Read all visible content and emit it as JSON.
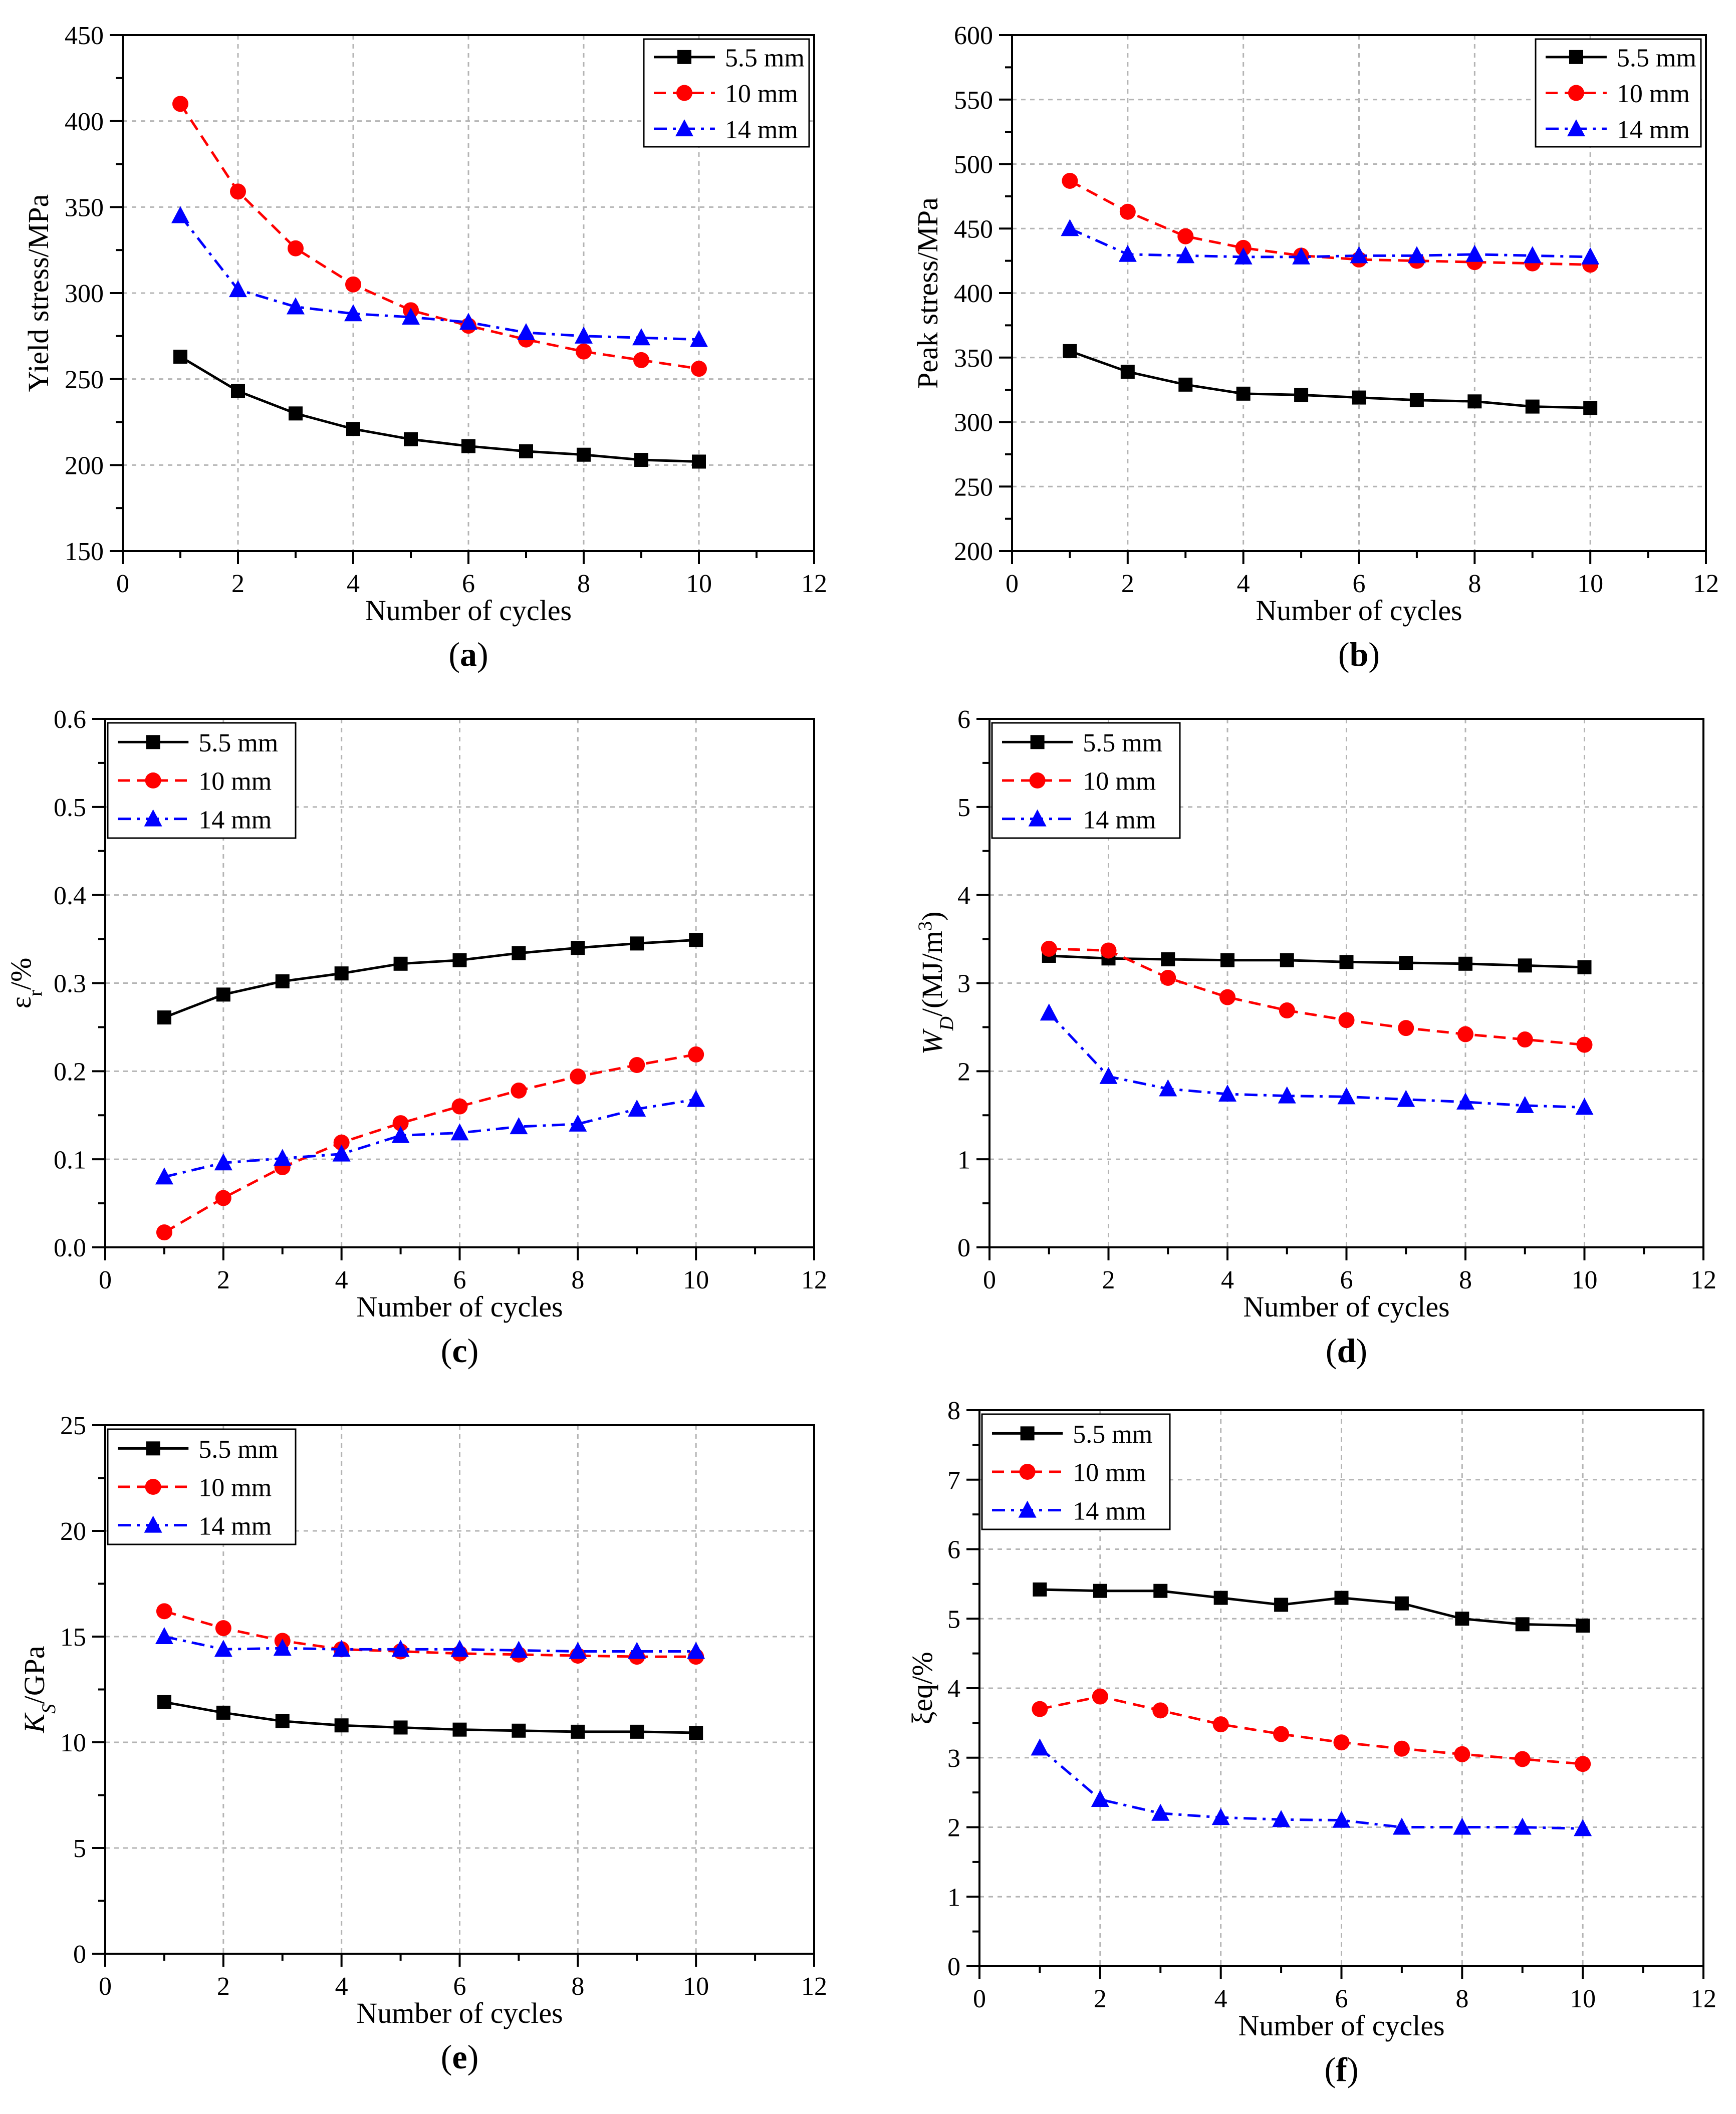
{
  "figure": {
    "series_styles": [
      {
        "color": "#000000",
        "dash": "none",
        "marker": "square"
      },
      {
        "color": "#ff0000",
        "dash": "dashed",
        "marker": "circle"
      },
      {
        "color": "#0000ff",
        "dash": "dashdot",
        "marker": "triangle"
      }
    ]
  },
  "chart_data": [
    {
      "id": "a",
      "type": "line",
      "panel_label": "(a)",
      "panel_letter": "a",
      "xlabel": "Number of cycles",
      "ylabel": "Yield stress/MPa",
      "ylabel_main": "Yield stress/MPa",
      "ylabel_sub": "",
      "ylabel_tail": "",
      "xlim": [
        0,
        12
      ],
      "ylim": [
        150,
        450
      ],
      "xticks": [
        "0",
        "2",
        "4",
        "6",
        "8",
        "10",
        "12"
      ],
      "yticks": [
        "150",
        "200",
        "250",
        "300",
        "350",
        "400",
        "450"
      ],
      "grid": true,
      "legend_position": "top-right",
      "x": [
        1,
        2,
        3,
        4,
        5,
        6,
        7,
        8,
        9,
        10
      ],
      "series": [
        {
          "name": "5.5 mm",
          "values": [
            263,
            243,
            230,
            221,
            215,
            211,
            208,
            206,
            203,
            202
          ]
        },
        {
          "name": "10 mm",
          "values": [
            410,
            359,
            326,
            305,
            290,
            281,
            273,
            266,
            261,
            256
          ]
        },
        {
          "name": "14 mm",
          "values": [
            345,
            302,
            292,
            288,
            286,
            283,
            277,
            275,
            274,
            273
          ]
        }
      ]
    },
    {
      "id": "b",
      "type": "line",
      "panel_label": "(b)",
      "panel_letter": "b",
      "xlabel": "Number of cycles",
      "ylabel": "Peak stress/MPa",
      "ylabel_main": "Peak stress/MPa",
      "ylabel_sub": "",
      "ylabel_tail": "",
      "xlim": [
        0,
        12
      ],
      "ylim": [
        200,
        600
      ],
      "xticks": [
        "0",
        "2",
        "4",
        "6",
        "8",
        "10",
        "12"
      ],
      "yticks": [
        "200",
        "250",
        "300",
        "350",
        "400",
        "450",
        "500",
        "550",
        "600"
      ],
      "grid": true,
      "legend_position": "top-right",
      "x": [
        1,
        2,
        3,
        4,
        5,
        6,
        7,
        8,
        9,
        10
      ],
      "series": [
        {
          "name": "5.5 mm",
          "values": [
            355,
            339,
            329,
            322,
            321,
            319,
            317,
            316,
            312,
            311
          ]
        },
        {
          "name": "10 mm",
          "values": [
            487,
            463,
            444,
            435,
            429,
            426,
            425,
            424,
            423,
            422
          ]
        },
        {
          "name": "14 mm",
          "values": [
            450,
            430,
            429,
            428,
            428,
            429,
            429,
            430,
            429,
            428
          ]
        }
      ]
    },
    {
      "id": "c",
      "type": "line",
      "panel_label": "(c)",
      "panel_letter": "c",
      "xlabel": "Number of cycles",
      "ylabel": "εr/%",
      "ylabel_main": "ε",
      "ylabel_sub": "r",
      "ylabel_tail": "/%",
      "xlim": [
        0,
        12
      ],
      "ylim": [
        0,
        0.6
      ],
      "xticks": [
        "0",
        "2",
        "4",
        "6",
        "8",
        "10",
        "12"
      ],
      "yticks": [
        "0.0",
        "0.1",
        "0.2",
        "0.3",
        "0.4",
        "0.5",
        "0.6"
      ],
      "grid": true,
      "legend_position": "top-left",
      "x": [
        1,
        2,
        3,
        4,
        5,
        6,
        7,
        8,
        9,
        10
      ],
      "series": [
        {
          "name": "5.5 mm",
          "values": [
            0.261,
            0.287,
            0.302,
            0.311,
            0.322,
            0.326,
            0.334,
            0.34,
            0.345,
            0.349
          ]
        },
        {
          "name": "10 mm",
          "values": [
            0.017,
            0.056,
            0.091,
            0.119,
            0.141,
            0.16,
            0.178,
            0.194,
            0.207,
            0.219
          ]
        },
        {
          "name": "14 mm",
          "values": [
            0.08,
            0.096,
            0.101,
            0.106,
            0.127,
            0.13,
            0.137,
            0.14,
            0.157,
            0.168
          ]
        }
      ]
    },
    {
      "id": "d",
      "type": "line",
      "panel_label": "(d)",
      "panel_letter": "d",
      "xlabel": "Number of cycles",
      "ylabel": "WD/(MJ/m3)",
      "ylabel_main": "W",
      "ylabel_sub": "D",
      "ylabel_tail": "/(MJ/m",
      "ylabel_sup": "3",
      "ylabel_end": ")",
      "xlim": [
        0,
        12
      ],
      "ylim": [
        0,
        6
      ],
      "xticks": [
        "0",
        "2",
        "4",
        "6",
        "8",
        "10",
        "12"
      ],
      "yticks": [
        "0",
        "1",
        "2",
        "3",
        "4",
        "5",
        "6"
      ],
      "grid": true,
      "legend_position": "top-left",
      "x": [
        1,
        2,
        3,
        4,
        5,
        6,
        7,
        8,
        9,
        10
      ],
      "series": [
        {
          "name": "5.5 mm",
          "values": [
            3.31,
            3.28,
            3.27,
            3.26,
            3.26,
            3.24,
            3.23,
            3.22,
            3.2,
            3.18
          ]
        },
        {
          "name": "10 mm",
          "values": [
            3.39,
            3.37,
            3.06,
            2.84,
            2.69,
            2.58,
            2.49,
            2.42,
            2.36,
            2.3
          ]
        },
        {
          "name": "14 mm",
          "values": [
            2.66,
            1.94,
            1.8,
            1.74,
            1.72,
            1.71,
            1.68,
            1.65,
            1.61,
            1.59
          ]
        }
      ]
    },
    {
      "id": "e",
      "type": "line",
      "panel_label": "(e)",
      "panel_letter": "e",
      "xlabel": "Number of cycles",
      "ylabel": "KS/GPa",
      "ylabel_main": "K",
      "ylabel_sub": "S",
      "ylabel_tail": "/GPa",
      "xlim": [
        0,
        12
      ],
      "ylim": [
        0,
        25
      ],
      "xticks": [
        "0",
        "2",
        "4",
        "6",
        "8",
        "10",
        "12"
      ],
      "yticks": [
        "0",
        "5",
        "10",
        "15",
        "20",
        "25"
      ],
      "grid": true,
      "legend_position": "top-left",
      "x": [
        1,
        2,
        3,
        4,
        5,
        6,
        7,
        8,
        9,
        10
      ],
      "series": [
        {
          "name": "5.5 mm",
          "values": [
            11.9,
            11.4,
            11.0,
            10.8,
            10.7,
            10.6,
            10.55,
            10.5,
            10.5,
            10.45
          ]
        },
        {
          "name": "10 mm",
          "values": [
            16.2,
            15.4,
            14.8,
            14.4,
            14.3,
            14.2,
            14.15,
            14.1,
            14.05,
            14.05
          ]
        },
        {
          "name": "14 mm",
          "values": [
            15.0,
            14.4,
            14.45,
            14.4,
            14.4,
            14.4,
            14.35,
            14.3,
            14.3,
            14.3
          ]
        }
      ]
    },
    {
      "id": "f",
      "type": "line",
      "panel_label": "(f)",
      "panel_letter": "f",
      "xlabel": "Number of cycles",
      "ylabel": "ξeq/%",
      "ylabel_main": "ξeq/%",
      "ylabel_sub": "",
      "ylabel_tail": "",
      "xlim": [
        0,
        12
      ],
      "ylim": [
        0,
        8
      ],
      "xticks": [
        "0",
        "2",
        "4",
        "6",
        "8",
        "10",
        "12"
      ],
      "yticks": [
        "0",
        "1",
        "2",
        "3",
        "4",
        "5",
        "6",
        "7",
        "8"
      ],
      "grid": true,
      "legend_position": "top-left",
      "x": [
        1,
        2,
        3,
        4,
        5,
        6,
        7,
        8,
        9,
        10
      ],
      "series": [
        {
          "name": "5.5 mm",
          "values": [
            5.42,
            5.4,
            5.4,
            5.3,
            5.2,
            5.3,
            5.22,
            5.0,
            4.92,
            4.9
          ]
        },
        {
          "name": "10 mm",
          "values": [
            3.7,
            3.88,
            3.68,
            3.48,
            3.34,
            3.22,
            3.13,
            3.05,
            2.98,
            2.91
          ]
        },
        {
          "name": "14 mm",
          "values": [
            3.14,
            2.4,
            2.2,
            2.14,
            2.11,
            2.1,
            2.0,
            2.0,
            2.0,
            1.98
          ]
        }
      ]
    }
  ]
}
